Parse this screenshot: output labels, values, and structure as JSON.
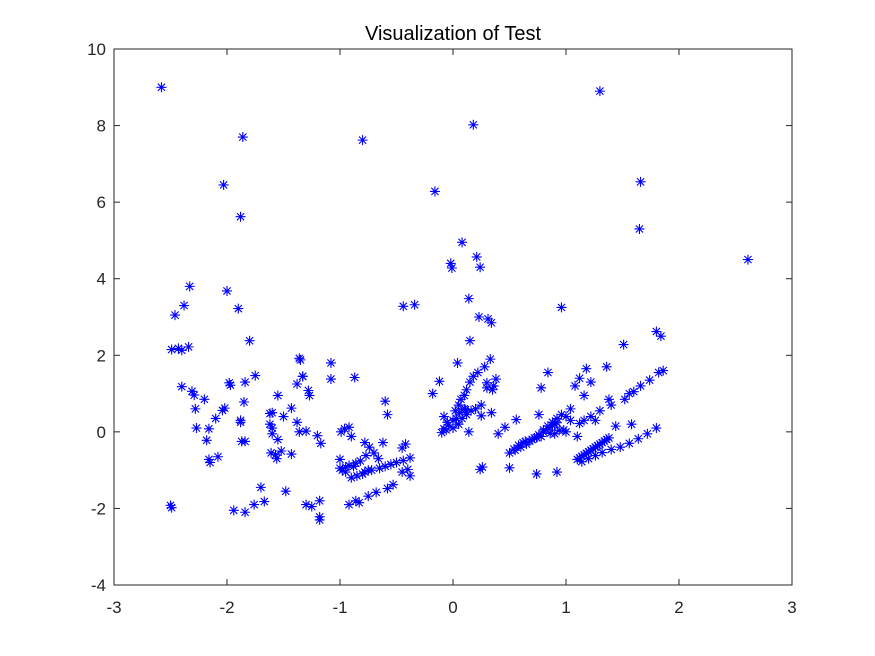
{
  "chart_data": {
    "type": "scatter",
    "title": "Visualization of Test",
    "xlabel": "",
    "ylabel": "",
    "xlim": [
      -3,
      3
    ],
    "ylim": [
      -4,
      10
    ],
    "xticks": [
      -3,
      -2,
      -1,
      0,
      1,
      2,
      3
    ],
    "yticks": [
      -4,
      -2,
      0,
      2,
      4,
      6,
      8,
      10
    ],
    "xtick_labels": [
      "-3",
      "-2",
      "-1",
      "0",
      "1",
      "2",
      "3"
    ],
    "ytick_labels": [
      "-4",
      "-2",
      "0",
      "2",
      "4",
      "6",
      "8",
      "10"
    ],
    "grid": false,
    "marker": "asterisk",
    "color": "#0000ff",
    "series": [
      {
        "x": [
          -2.58,
          1.3,
          -1.86,
          0.18,
          -0.8,
          -2.03,
          1.66,
          -1.88,
          -0.16,
          0.08,
          1.65,
          0.21,
          2.61,
          -0.02,
          0.24,
          -0.01,
          -2.33,
          -2.0,
          -2.38,
          -2.46,
          -1.9,
          0.14,
          -0.44,
          -0.34,
          0.96,
          0.23,
          0.31,
          0.34,
          -2.34,
          -2.49,
          -2.4,
          -2.43,
          -1.8,
          0.15,
          1.84,
          1.8,
          1.51,
          -1.36,
          -1.08,
          0.04,
          -1.33,
          -1.75,
          -2.4,
          -2.31,
          -2.29,
          -1.98,
          -1.97,
          -1.84,
          -2.02,
          -2.2,
          -2.28,
          -1.85,
          -1.55,
          -1.43,
          -1.62,
          -1.5,
          -1.6,
          -1.88,
          -2.04,
          -2.1,
          -1.62,
          -1.28,
          -1.27,
          -1.33,
          -1.6,
          -1.88,
          -1.55,
          -2.16,
          -2.18,
          -2.16,
          -2.08,
          -2.15,
          -2.27,
          -1.87,
          -1.6,
          -1.36,
          -1.3,
          -1.57,
          -1.43,
          -1.2,
          -1.17,
          -1.52,
          -1.56,
          -1.61,
          -1.48,
          -1.7,
          -1.67,
          -1.76,
          -2.5,
          -2.49,
          -0.99,
          -0.96,
          -0.92,
          -0.95,
          -1.0,
          -0.86,
          -0.98,
          -0.88,
          -0.92,
          -1.18,
          -1.18,
          -0.82,
          -0.77,
          -0.78,
          -0.7,
          -0.74,
          -0.78,
          -0.6,
          -0.42,
          -0.45,
          -0.38,
          -0.44,
          -0.92,
          -0.86,
          -0.75,
          -0.68,
          -0.58,
          -0.53,
          -0.45,
          -0.4,
          -0.38,
          -0.18,
          -0.12,
          -0.08,
          -0.05,
          0.0,
          0.02,
          0.05,
          0.07,
          0.1,
          0.12,
          0.15,
          0.18,
          0.22,
          0.28,
          0.33,
          0.36,
          0.4,
          -0.1,
          -0.06,
          0.0,
          0.05,
          0.08,
          0.12,
          0.16,
          0.2,
          0.25,
          0.3,
          0.35,
          0.38,
          0.3,
          0.34,
          0.1,
          0.14,
          -0.08,
          -0.04,
          0.03,
          0.06,
          0.11,
          0.25,
          0.26,
          0.24,
          0.5,
          0.55,
          0.6,
          0.65,
          0.68,
          0.72,
          0.76,
          0.8,
          0.84,
          0.88,
          0.92,
          0.56,
          0.62,
          0.7,
          0.78,
          0.86,
          0.94,
          0.46,
          0.5,
          0.54,
          0.58,
          0.64,
          0.74,
          0.8,
          0.84,
          0.88,
          0.92,
          0.96,
          1.0,
          1.04,
          0.9,
          0.92,
          0.74,
          0.78,
          1.08,
          1.1,
          1.12,
          1.14,
          1.16,
          1.18,
          1.2,
          1.22,
          1.24,
          1.26,
          1.28,
          1.3,
          1.32,
          1.34,
          1.36,
          1.38,
          1.1,
          1.14,
          1.2,
          1.26,
          1.32,
          1.4,
          1.48,
          1.56,
          1.64,
          1.72,
          1.8,
          1.12,
          1.16,
          1.22,
          1.3,
          1.4,
          1.52,
          1.6,
          1.66,
          1.74,
          1.82,
          1.86,
          1.18,
          1.22,
          1.12,
          1.16,
          1.56,
          1.38,
          1.36,
          1.04,
          0.98,
          1.0,
          0.9,
          0.84,
          0.76,
          1.26,
          1.44,
          1.58,
          -1.38,
          -1.35,
          -1.08,
          -1.38,
          -0.87,
          -1.0,
          -0.58,
          -0.9,
          -0.62,
          -1.84,
          -1.84,
          -1.94,
          -1.25,
          -1.3,
          -1.18,
          -0.83,
          -0.66,
          -0.75,
          -0.95,
          -0.9,
          -0.85,
          -0.8,
          -0.72,
          -0.65,
          -0.6,
          -0.55,
          -0.5
        ],
        "y": [
          9.0,
          8.9,
          7.7,
          8.02,
          7.62,
          6.45,
          6.53,
          5.62,
          6.28,
          4.95,
          5.3,
          4.57,
          4.5,
          4.4,
          4.3,
          4.28,
          3.8,
          3.68,
          3.3,
          3.05,
          3.22,
          3.48,
          3.28,
          3.32,
          3.25,
          3.0,
          2.95,
          2.85,
          2.22,
          2.15,
          2.13,
          2.18,
          2.38,
          2.38,
          2.5,
          2.62,
          2.28,
          1.92,
          1.8,
          1.8,
          1.45,
          1.47,
          1.18,
          1.06,
          0.96,
          1.28,
          1.22,
          1.3,
          0.62,
          0.85,
          0.6,
          0.78,
          0.95,
          0.62,
          0.48,
          0.4,
          0.5,
          0.3,
          0.56,
          0.35,
          0.2,
          1.08,
          0.95,
          1.45,
          0.1,
          0.25,
          -0.2,
          0.08,
          -0.22,
          -0.72,
          -0.65,
          -0.8,
          0.1,
          -0.25,
          -0.05,
          0.0,
          0.02,
          -0.6,
          -0.58,
          -0.1,
          -0.3,
          -0.5,
          -0.7,
          -0.55,
          -1.55,
          -1.45,
          -1.82,
          -1.9,
          -1.92,
          -1.98,
          0.0,
          0.08,
          0.12,
          -0.92,
          -0.95,
          -0.82,
          -1.0,
          -0.9,
          -0.88,
          -2.22,
          -2.3,
          -0.76,
          -0.62,
          -1.05,
          -0.55,
          -0.4,
          -0.28,
          0.8,
          -0.32,
          -0.42,
          -0.68,
          -0.75,
          -1.9,
          -1.8,
          -1.68,
          -1.58,
          -1.48,
          -1.38,
          -1.05,
          -0.98,
          -1.15,
          1.0,
          1.32,
          0.4,
          0.25,
          0.3,
          0.55,
          0.7,
          0.85,
          0.95,
          1.1,
          1.3,
          1.45,
          1.55,
          1.7,
          1.9,
          1.2,
          -0.05,
          -0.02,
          0.05,
          0.1,
          0.2,
          0.35,
          0.45,
          0.55,
          0.6,
          0.7,
          1.15,
          1.1,
          1.38,
          1.28,
          0.5,
          0.6,
          0.0,
          0.08,
          0.18,
          0.35,
          0.5,
          0.58,
          0.42,
          -0.92,
          -0.98,
          -0.94,
          -0.48,
          -0.4,
          -0.32,
          -0.24,
          -0.16,
          -0.08,
          0.0,
          0.08,
          0.16,
          0.24,
          0.32,
          -0.28,
          -0.2,
          -0.12,
          -0.04,
          0.04,
          0.12,
          -0.55,
          -0.45,
          -0.35,
          -0.25,
          -0.15,
          0.05,
          0.15,
          0.25,
          0.35,
          0.45,
          0.4,
          0.3,
          0.2,
          -1.05,
          -1.1,
          1.15,
          1.2,
          -0.72,
          -0.68,
          -0.64,
          -0.6,
          -0.56,
          -0.52,
          -0.48,
          -0.44,
          -0.4,
          -0.36,
          -0.32,
          -0.28,
          -0.24,
          -0.2,
          -0.16,
          -0.12,
          -0.78,
          -0.7,
          -0.62,
          -0.54,
          -0.46,
          -0.4,
          -0.3,
          -0.18,
          -0.05,
          0.1,
          0.22,
          0.3,
          0.4,
          0.55,
          0.7,
          0.85,
          1.05,
          1.2,
          1.35,
          1.55,
          1.6,
          1.65,
          1.3,
          1.4,
          0.95,
          1.0,
          0.85,
          1.7,
          0.6,
          0.05,
          0.0,
          -0.05,
          1.55,
          0.45,
          0.3,
          0.15,
          0.2,
          0.25,
          1.88,
          1.38,
          1.25,
          1.42,
          -0.72,
          0.45,
          -0.12,
          -0.28,
          -0.25,
          -2.1,
          -2.05,
          -1.95,
          -1.9,
          -1.8,
          -1.85,
          -0.7,
          -1.0,
          -1.05,
          -1.2,
          -1.15,
          -1.1,
          -1.0,
          -0.95,
          -0.9,
          -0.85,
          -0.8
        ]
      }
    ]
  }
}
